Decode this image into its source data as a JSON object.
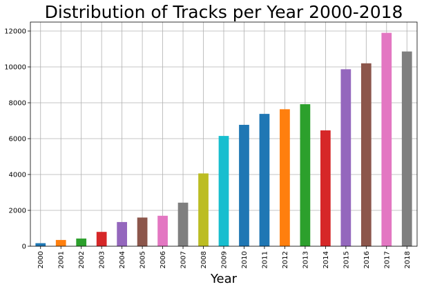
{
  "chart_data": {
    "type": "bar",
    "title": "Distribution of Tracks per Year 2000-2018",
    "xlabel": "Year",
    "ylabel": "",
    "categories": [
      "2000",
      "2001",
      "2002",
      "2003",
      "2004",
      "2005",
      "2006",
      "2007",
      "2008",
      "2009",
      "2010",
      "2011",
      "2012",
      "2013",
      "2014",
      "2015",
      "2016",
      "2017",
      "2018"
    ],
    "values": [
      170,
      350,
      430,
      800,
      1350,
      1600,
      1700,
      2430,
      4060,
      6150,
      6770,
      7380,
      7640,
      7920,
      6460,
      9870,
      10200,
      11900,
      10860
    ],
    "colors": [
      "#1f77b4",
      "#ff7f0e",
      "#2ca02c",
      "#d62728",
      "#9467bd",
      "#8c564b",
      "#e377c2",
      "#7f7f7f",
      "#bcbd22",
      "#17becf",
      "#1f77b4",
      "#1f77b4",
      "#ff7f0e",
      "#2ca02c",
      "#d62728",
      "#9467bd",
      "#8c564b",
      "#e377c2",
      "#7f7f7f"
    ],
    "ylim": [
      0,
      12500
    ],
    "yticks": [
      0,
      2000,
      4000,
      6000,
      8000,
      10000,
      12000
    ],
    "ytick_labels": [
      "0",
      "2000",
      "4000",
      "6000",
      "8000",
      "10000",
      "12000"
    ],
    "grid": true,
    "legend": "none"
  }
}
